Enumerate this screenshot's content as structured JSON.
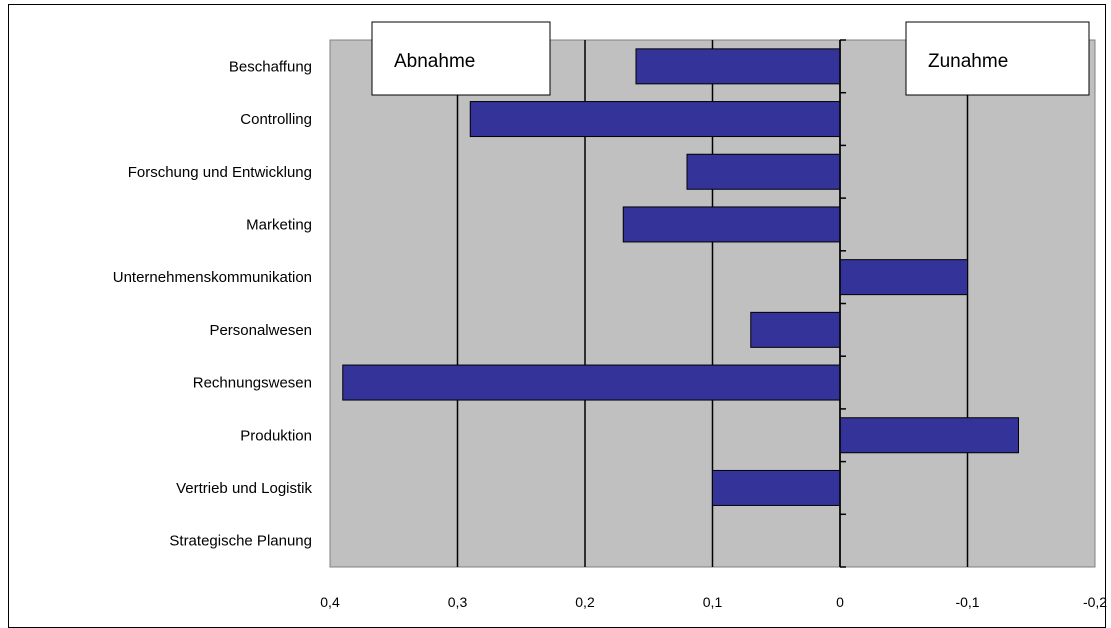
{
  "chart_data": {
    "type": "bar",
    "orientation": "horizontal",
    "reversed_x_axis": true,
    "categories": [
      "Beschaffung",
      "Controlling",
      "Forschung und Entwicklung",
      "Marketing",
      "Unternehmenskommunikation",
      "Personalwesen",
      "Rechnungswesen",
      "Produktion",
      "Vertrieb und Logistik",
      "Strategische Planung"
    ],
    "values": [
      0.16,
      0.29,
      0.12,
      0.17,
      -0.1,
      0.07,
      0.39,
      -0.14,
      0.1,
      0.0
    ],
    "xlim": [
      0.4,
      -0.2
    ],
    "xticks": [
      0.4,
      0.3,
      0.2,
      0.1,
      0,
      -0.1,
      -0.2
    ],
    "xtick_labels": [
      "0,4",
      "0,3",
      "0,2",
      "0,1",
      "0",
      "-0,1",
      "-0,2"
    ],
    "annotations": [
      "Abnahme",
      "Zunahme"
    ],
    "grid": true,
    "bar_color": "#333399",
    "plot_background": "#c0c0c0"
  }
}
